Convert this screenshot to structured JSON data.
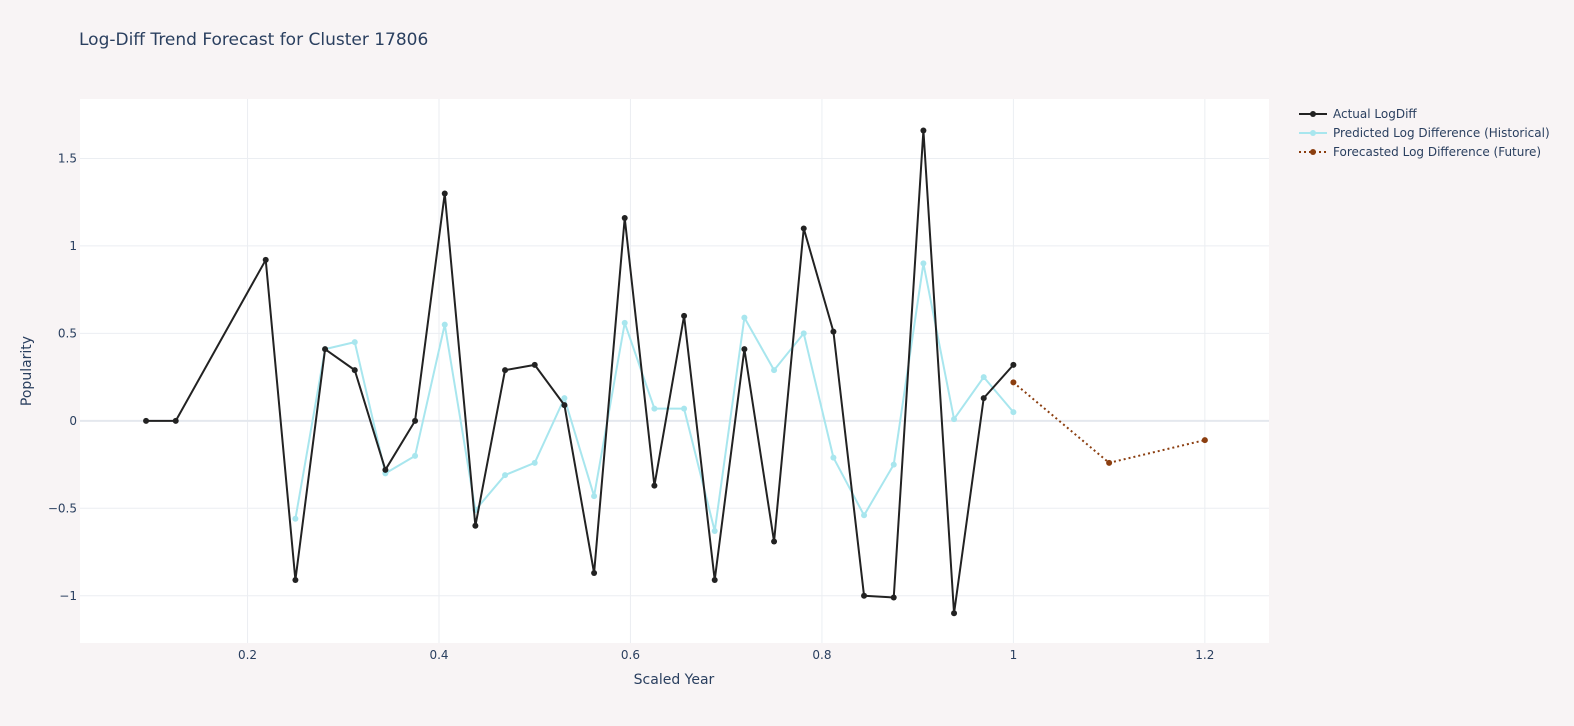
{
  "chart_data": {
    "type": "line",
    "title": "Log-Diff Trend Forecast for Cluster 17806",
    "xlabel": "Scaled Year",
    "ylabel": "Popularity",
    "xlim": [
      0.025,
      1.267
    ],
    "ylim": [
      -1.27,
      1.84
    ],
    "xticks": [
      0.2,
      0.4,
      0.6,
      0.8,
      1.0,
      1.2
    ],
    "xtick_labels": [
      "0.2",
      "0.4",
      "0.6",
      "0.8",
      "1",
      "1.2"
    ],
    "yticks": [
      -1,
      -0.5,
      0,
      0.5,
      1,
      1.5
    ],
    "ytick_labels": [
      "−1",
      "−0.5",
      "0",
      "0.5",
      "1",
      "1.5"
    ],
    "grid": true,
    "legend_position": "top-right (outside plot)",
    "series": [
      {
        "name": "Actual LogDiff",
        "color": "#222222",
        "dash": "solid",
        "x": [
          0.094,
          0.125,
          0.219,
          0.25,
          0.281,
          0.312,
          0.344,
          0.375,
          0.406,
          0.438,
          0.469,
          0.5,
          0.531,
          0.562,
          0.594,
          0.625,
          0.656,
          0.688,
          0.719,
          0.75,
          0.781,
          0.812,
          0.844,
          0.875,
          0.906,
          0.938,
          0.969,
          1.0
        ],
        "y": [
          0.0,
          0.0,
          0.92,
          -0.91,
          0.41,
          0.29,
          -0.28,
          0.0,
          1.3,
          -0.6,
          0.29,
          0.32,
          0.09,
          -0.87,
          1.16,
          -0.37,
          0.6,
          -0.91,
          0.41,
          -0.69,
          1.1,
          0.51,
          -1.0,
          -1.01,
          1.66,
          -1.1,
          0.13,
          0.32
        ]
      },
      {
        "name": "Predicted Log Difference (Historical)",
        "color": "#a8e6ee",
        "dash": "solid",
        "x": [
          0.25,
          0.281,
          0.312,
          0.344,
          0.375,
          0.406,
          0.438,
          0.469,
          0.5,
          0.531,
          0.562,
          0.594,
          0.625,
          0.656,
          0.688,
          0.719,
          0.75,
          0.781,
          0.812,
          0.844,
          0.875,
          0.906,
          0.938,
          0.969,
          1.0
        ],
        "y": [
          -0.56,
          0.41,
          0.45,
          -0.3,
          -0.2,
          0.55,
          -0.51,
          -0.31,
          -0.24,
          0.13,
          -0.43,
          0.56,
          0.07,
          0.07,
          -0.63,
          0.59,
          0.29,
          0.5,
          -0.21,
          -0.54,
          -0.25,
          0.9,
          0.01,
          0.25,
          0.05
        ]
      },
      {
        "name": "Forecasted Log Difference (Future)",
        "color": "#8b3e10",
        "dash": "dot",
        "x": [
          1.0,
          1.1,
          1.2
        ],
        "y": [
          0.22,
          -0.24,
          -0.11
        ]
      }
    ]
  }
}
